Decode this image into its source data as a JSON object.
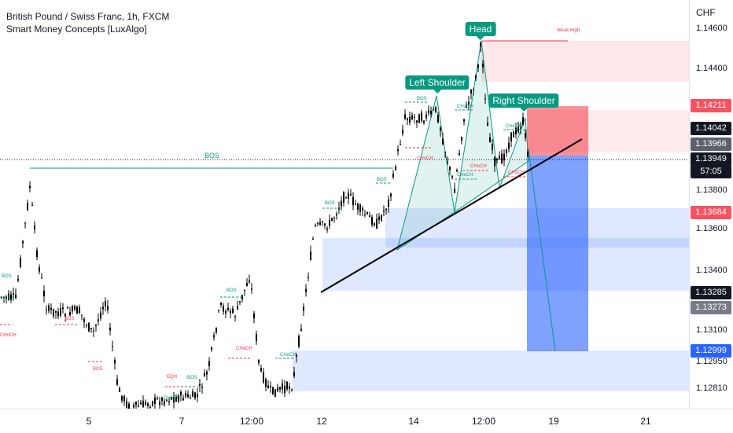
{
  "header": {
    "title": "British Pound / Swiss Franc, 1h, FXCM",
    "indicator": "Smart Money Concepts [LuxAlgo]"
  },
  "price_axis": {
    "currency": "CHF",
    "ticks": [
      "1.14600",
      "1.14400",
      "1.13800",
      "1.13600",
      "1.13400",
      "1.13100",
      "1.12950",
      "1.12810"
    ],
    "tags": {
      "stop": "1.14211",
      "high": "1.14042",
      "mid": "1.13966",
      "last": "1.13949",
      "countdown": "57:05",
      "entry_low": "1.13684",
      "l1": "1.13285",
      "l2": "1.13273",
      "target": "1.12999"
    }
  },
  "time_axis": [
    "5",
    "7",
    "12:00",
    "12",
    "14",
    "12:00",
    "19",
    "21"
  ],
  "pattern": {
    "head": "Head",
    "left_shoulder": "Left Shoulder",
    "right_shoulder": "Right Shoulder",
    "weak_high": "Weak High",
    "bos_main": "BOS"
  },
  "smc_labels": {
    "bos": "BOS",
    "choch": "CHoCH",
    "eqh": "EQH"
  },
  "colors": {
    "bull": "#089981",
    "bear": "#f23645",
    "candle": "#000000",
    "zone_blue": "#2962ff",
    "zone_red": "#f23645"
  }
}
